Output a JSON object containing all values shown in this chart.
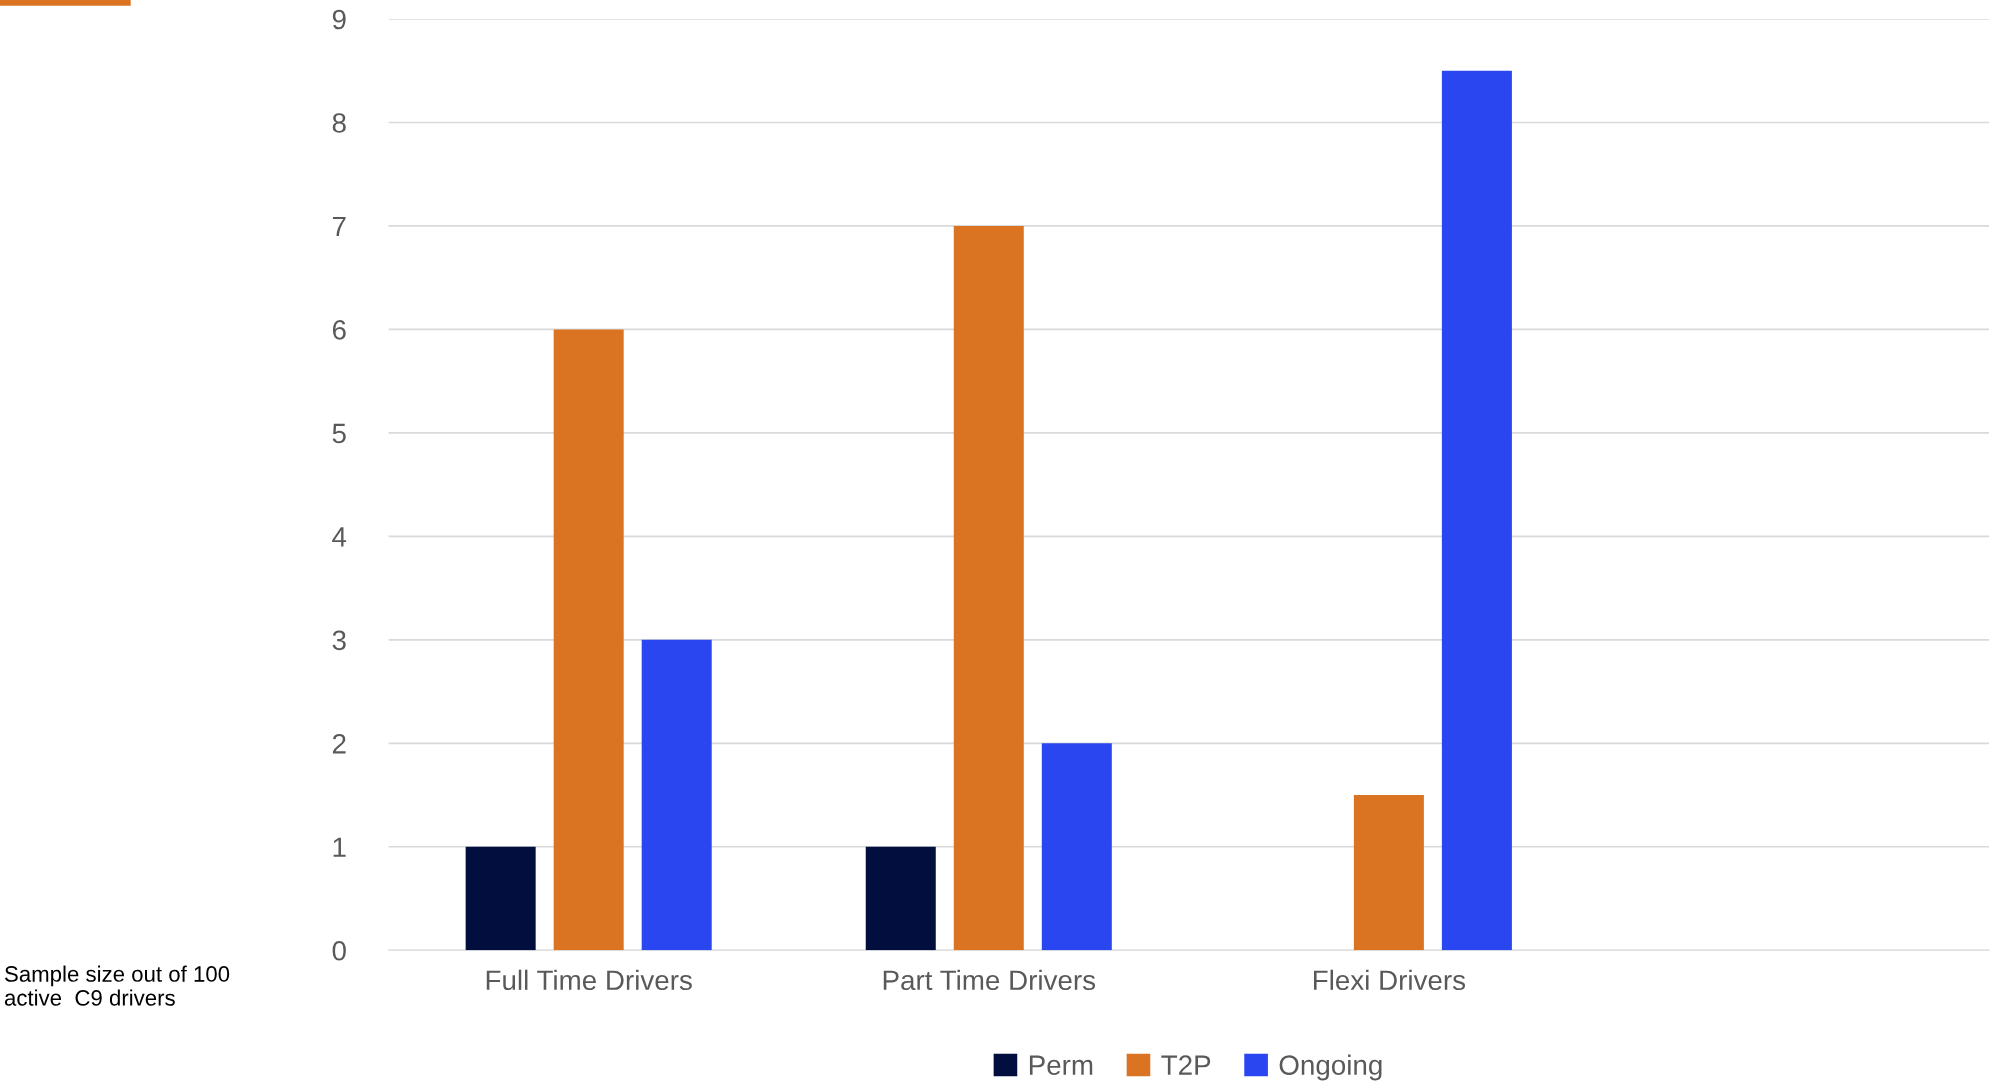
{
  "chart_data": {
    "type": "bar",
    "categories": [
      "Full Time Drivers",
      "Part Time Drivers",
      "Flexi Drivers",
      null
    ],
    "series": [
      {
        "name": "Perm",
        "color": "#020e3d",
        "values": [
          1,
          1,
          0,
          null
        ]
      },
      {
        "name": "T2P",
        "color": "#da7423",
        "values": [
          6,
          7,
          1.5,
          null
        ]
      },
      {
        "name": "Ongoing",
        "color": "#2946f0",
        "values": [
          3,
          2,
          8.5,
          null
        ]
      }
    ],
    "ylim": [
      0,
      9
    ],
    "yticks": [
      0,
      1,
      2,
      3,
      4,
      5,
      6,
      7,
      8,
      9
    ],
    "grid": "y",
    "legend": "bottom",
    "annotations": [
      "Sample size out of 100\nactive  C9 drivers"
    ]
  }
}
